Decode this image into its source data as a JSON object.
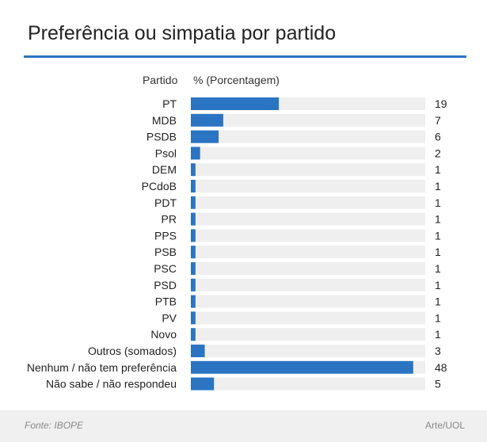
{
  "header": {
    "title": "Preferência ou simpatia por partido",
    "col_label_party": "Partido",
    "col_label_value": "% (Porcentagem)"
  },
  "footer": {
    "source": "Fonte: IBOPE",
    "credit": "Arte/UOL"
  },
  "colors": {
    "bar": "#2b74c2",
    "track": "#efefef",
    "accent_rule": "#2b74c2",
    "text": "#222222",
    "footer_bg": "#f0f0f0"
  },
  "chart_data": {
    "type": "bar",
    "orientation": "horizontal",
    "title": "Preferência ou simpatia por partido",
    "xlabel": "% (Porcentagem)",
    "ylabel": "Partido",
    "xlim": [
      0,
      50
    ],
    "grid": false,
    "legend": "none",
    "categories": [
      "PT",
      "MDB",
      "PSDB",
      "Psol",
      "DEM",
      "PCdoB",
      "PDT",
      "PR",
      "PPS",
      "PSB",
      "PSC",
      "PSD",
      "PTB",
      "PV",
      "Novo",
      "Outros (somados)",
      "Nenhum / não tem preferência",
      "Não sabe / não respondeu"
    ],
    "values": [
      19,
      7,
      6,
      2,
      1,
      1,
      1,
      1,
      1,
      1,
      1,
      1,
      1,
      1,
      1,
      3,
      48,
      5
    ]
  }
}
